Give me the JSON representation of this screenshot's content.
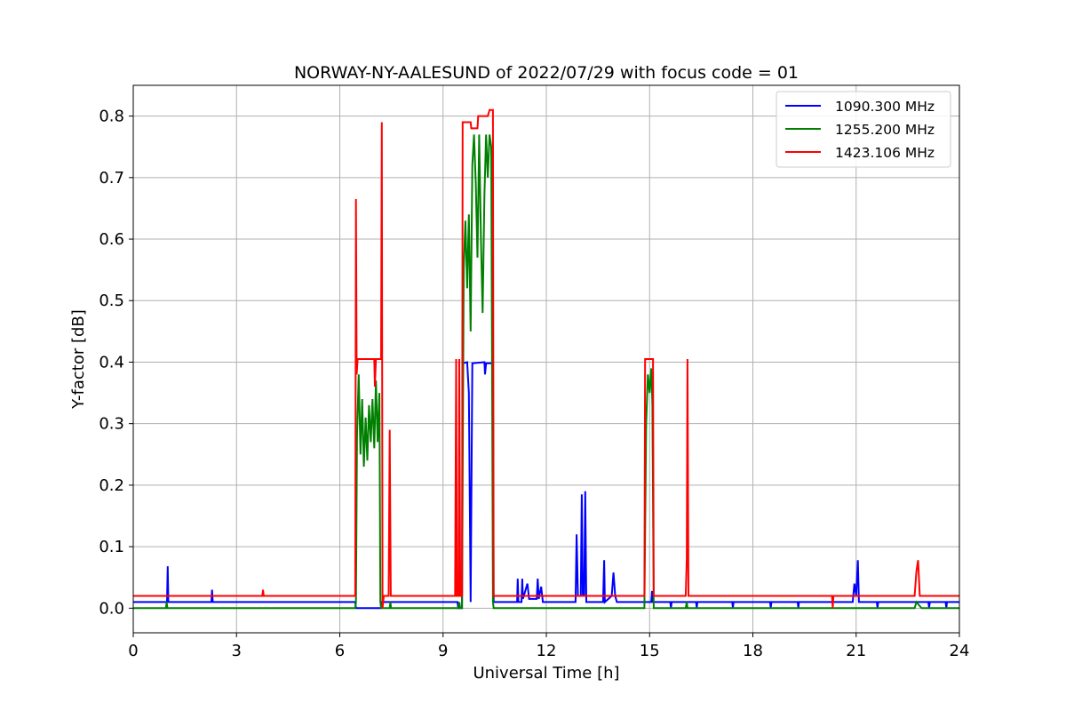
{
  "chart_data": {
    "type": "line",
    "title": "NORWAY-NY-AALESUND of 2022/07/29 with focus code = 01",
    "xlabel": "Universal Time [h]",
    "ylabel": "Y-factor [dB]",
    "xlim": [
      0,
      24
    ],
    "ylim": [
      -0.04,
      0.85
    ],
    "xticks": [
      0,
      3,
      6,
      9,
      12,
      15,
      18,
      21,
      24
    ],
    "xtick_labels": [
      "0",
      "3",
      "6",
      "9",
      "12",
      "15",
      "18",
      "21",
      "24"
    ],
    "yticks": [
      0.0,
      0.1,
      0.2,
      0.3,
      0.4,
      0.5,
      0.6,
      0.7,
      0.8
    ],
    "ytick_labels": [
      "0.0",
      "0.1",
      "0.2",
      "0.3",
      "0.4",
      "0.5",
      "0.6",
      "0.7",
      "0.8"
    ],
    "grid": true,
    "legend_position": "top-right",
    "series": [
      {
        "name": "1090.300 MHz",
        "color": "#0000ff",
        "points": [
          [
            0,
            0.01
          ],
          [
            0.98,
            0.01
          ],
          [
            1.0,
            0.068
          ],
          [
            1.02,
            0.01
          ],
          [
            2.27,
            0.01
          ],
          [
            2.29,
            0.03
          ],
          [
            2.31,
            0.01
          ],
          [
            6.45,
            0.01
          ],
          [
            6.47,
            0.0
          ],
          [
            7.2,
            0.0
          ],
          [
            7.22,
            0.01
          ],
          [
            9.42,
            0.01
          ],
          [
            9.44,
            0.0
          ],
          [
            9.55,
            0.0
          ],
          [
            9.57,
            0.398
          ],
          [
            9.7,
            0.4
          ],
          [
            9.75,
            0.35
          ],
          [
            9.8,
            0.01
          ],
          [
            9.85,
            0.398
          ],
          [
            10.2,
            0.4
          ],
          [
            10.22,
            0.38
          ],
          [
            10.25,
            0.398
          ],
          [
            10.45,
            0.398
          ],
          [
            10.47,
            0.01
          ],
          [
            11.15,
            0.01
          ],
          [
            11.17,
            0.048
          ],
          [
            11.19,
            0.01
          ],
          [
            11.28,
            0.01
          ],
          [
            11.3,
            0.048
          ],
          [
            11.32,
            0.015
          ],
          [
            11.45,
            0.04
          ],
          [
            11.5,
            0.015
          ],
          [
            11.72,
            0.015
          ],
          [
            11.75,
            0.048
          ],
          [
            11.78,
            0.015
          ],
          [
            11.85,
            0.035
          ],
          [
            11.9,
            0.01
          ],
          [
            12.85,
            0.01
          ],
          [
            12.88,
            0.12
          ],
          [
            12.92,
            0.02
          ],
          [
            13.0,
            0.02
          ],
          [
            13.03,
            0.185
          ],
          [
            13.06,
            0.02
          ],
          [
            13.1,
            0.02
          ],
          [
            13.13,
            0.19
          ],
          [
            13.16,
            0.01
          ],
          [
            13.65,
            0.01
          ],
          [
            13.68,
            0.078
          ],
          [
            13.7,
            0.01
          ],
          [
            13.9,
            0.02
          ],
          [
            13.95,
            0.058
          ],
          [
            14.0,
            0.02
          ],
          [
            14.05,
            0.01
          ],
          [
            15.05,
            0.01
          ],
          [
            15.07,
            0.028
          ],
          [
            15.09,
            0.01
          ],
          [
            15.6,
            0.01
          ],
          [
            15.62,
            0.0
          ],
          [
            15.64,
            0.01
          ],
          [
            16.35,
            0.01
          ],
          [
            16.37,
            0.0
          ],
          [
            16.39,
            0.01
          ],
          [
            17.4,
            0.01
          ],
          [
            17.42,
            0.0
          ],
          [
            17.44,
            0.01
          ],
          [
            18.5,
            0.01
          ],
          [
            18.52,
            0.0
          ],
          [
            18.54,
            0.01
          ],
          [
            19.3,
            0.01
          ],
          [
            19.32,
            0.0
          ],
          [
            19.34,
            0.01
          ],
          [
            20.9,
            0.01
          ],
          [
            20.95,
            0.04
          ],
          [
            21.0,
            0.02
          ],
          [
            21.05,
            0.078
          ],
          [
            21.08,
            0.01
          ],
          [
            21.6,
            0.01
          ],
          [
            21.62,
            0.0
          ],
          [
            21.64,
            0.01
          ],
          [
            23.1,
            0.01
          ],
          [
            23.12,
            0.0
          ],
          [
            23.14,
            0.01
          ],
          [
            23.6,
            0.01
          ],
          [
            23.62,
            0.0
          ],
          [
            23.64,
            0.01
          ],
          [
            24,
            0.01
          ]
        ]
      },
      {
        "name": "1255.200 MHz",
        "color": "#008000",
        "points": [
          [
            0,
            0.0
          ],
          [
            0.95,
            0.0
          ],
          [
            0.97,
            0.01
          ],
          [
            0.99,
            0.0
          ],
          [
            6.45,
            0.0
          ],
          [
            6.47,
            0.01
          ],
          [
            6.5,
            0.28
          ],
          [
            6.55,
            0.38
          ],
          [
            6.6,
            0.25
          ],
          [
            6.65,
            0.34
          ],
          [
            6.7,
            0.23
          ],
          [
            6.75,
            0.31
          ],
          [
            6.8,
            0.24
          ],
          [
            6.85,
            0.33
          ],
          [
            6.9,
            0.27
          ],
          [
            6.95,
            0.34
          ],
          [
            7.0,
            0.26
          ],
          [
            7.05,
            0.37
          ],
          [
            7.1,
            0.27
          ],
          [
            7.15,
            0.35
          ],
          [
            7.18,
            0.01
          ],
          [
            7.2,
            0.0
          ],
          [
            7.45,
            0.0
          ],
          [
            7.47,
            0.01
          ],
          [
            7.49,
            0.0
          ],
          [
            9.45,
            0.0
          ],
          [
            9.47,
            0.01
          ],
          [
            9.5,
            0.0
          ],
          [
            9.55,
            0.0
          ],
          [
            9.6,
            0.55
          ],
          [
            9.65,
            0.63
          ],
          [
            9.7,
            0.52
          ],
          [
            9.75,
            0.64
          ],
          [
            9.8,
            0.45
          ],
          [
            9.85,
            0.72
          ],
          [
            9.9,
            0.77
          ],
          [
            9.95,
            0.69
          ],
          [
            10.0,
            0.57
          ],
          [
            10.05,
            0.77
          ],
          [
            10.1,
            0.6
          ],
          [
            10.15,
            0.48
          ],
          [
            10.2,
            0.67
          ],
          [
            10.25,
            0.77
          ],
          [
            10.3,
            0.7
          ],
          [
            10.35,
            0.77
          ],
          [
            10.4,
            0.75
          ],
          [
            10.45,
            0.01
          ],
          [
            10.47,
            0.0
          ],
          [
            14.85,
            0.0
          ],
          [
            14.9,
            0.3
          ],
          [
            14.95,
            0.38
          ],
          [
            15.0,
            0.35
          ],
          [
            15.05,
            0.39
          ],
          [
            15.08,
            0.33
          ],
          [
            15.12,
            0.0
          ],
          [
            16.05,
            0.0
          ],
          [
            16.08,
            0.01
          ],
          [
            16.1,
            0.0
          ],
          [
            22.7,
            0.0
          ],
          [
            22.75,
            0.01
          ],
          [
            22.9,
            0.0
          ],
          [
            24,
            0.0
          ]
        ]
      },
      {
        "name": "1423.106 MHz",
        "color": "#ff0000",
        "points": [
          [
            0,
            0.02
          ],
          [
            3.75,
            0.02
          ],
          [
            3.77,
            0.03
          ],
          [
            3.79,
            0.02
          ],
          [
            6.45,
            0.02
          ],
          [
            6.47,
            0.665
          ],
          [
            6.49,
            0.38
          ],
          [
            6.52,
            0.405
          ],
          [
            7.0,
            0.405
          ],
          [
            7.02,
            0.36
          ],
          [
            7.05,
            0.405
          ],
          [
            7.2,
            0.405
          ],
          [
            7.22,
            0.79
          ],
          [
            7.24,
            0.0
          ],
          [
            7.28,
            0.02
          ],
          [
            7.42,
            0.02
          ],
          [
            7.45,
            0.29
          ],
          [
            7.48,
            0.02
          ],
          [
            9.35,
            0.02
          ],
          [
            9.38,
            0.405
          ],
          [
            9.4,
            0.02
          ],
          [
            9.45,
            0.02
          ],
          [
            9.47,
            0.405
          ],
          [
            9.5,
            0.02
          ],
          [
            9.55,
            0.02
          ],
          [
            9.57,
            0.79
          ],
          [
            9.8,
            0.79
          ],
          [
            9.82,
            0.78
          ],
          [
            10.0,
            0.78
          ],
          [
            10.02,
            0.8
          ],
          [
            10.3,
            0.8
          ],
          [
            10.35,
            0.81
          ],
          [
            10.45,
            0.81
          ],
          [
            10.47,
            0.02
          ],
          [
            14.85,
            0.02
          ],
          [
            14.87,
            0.405
          ],
          [
            15.1,
            0.405
          ],
          [
            15.12,
            0.02
          ],
          [
            16.05,
            0.02
          ],
          [
            16.08,
            0.08
          ],
          [
            16.1,
            0.405
          ],
          [
            16.13,
            0.02
          ],
          [
            20.3,
            0.02
          ],
          [
            20.32,
            0.0
          ],
          [
            20.34,
            0.02
          ],
          [
            22.7,
            0.02
          ],
          [
            22.75,
            0.06
          ],
          [
            22.8,
            0.078
          ],
          [
            22.85,
            0.02
          ],
          [
            24,
            0.02
          ]
        ]
      }
    ]
  }
}
